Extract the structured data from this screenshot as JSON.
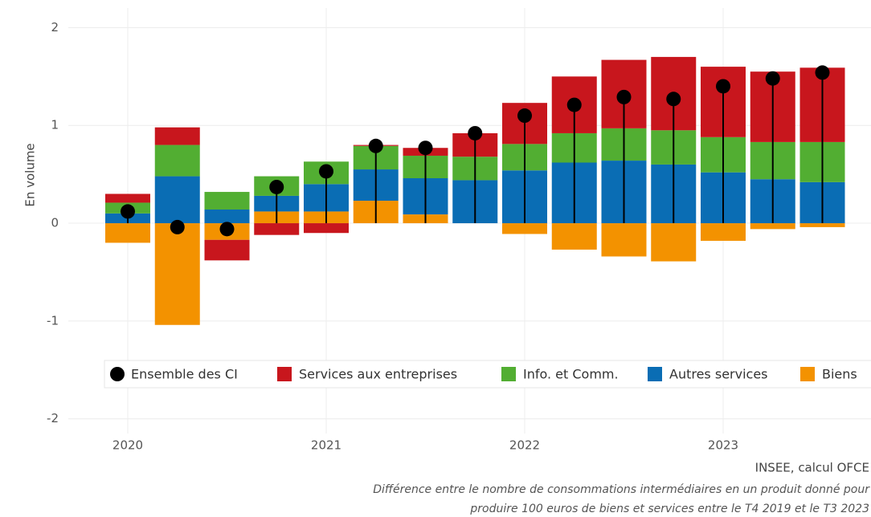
{
  "chart_data": {
    "type": "stacked_bar",
    "y_label": "En volume",
    "categories": [
      "2020",
      null,
      null,
      null,
      "2021",
      null,
      null,
      null,
      "2022",
      null,
      null,
      null,
      "2023",
      null,
      null
    ],
    "series": [
      {
        "name": "Ensemble des CI",
        "type": "dot",
        "color": "#000000",
        "values": [
          0.12,
          -0.04,
          -0.06,
          0.37,
          0.53,
          0.79,
          0.77,
          0.92,
          1.1,
          1.21,
          1.29,
          1.27,
          1.4,
          1.48,
          1.54
        ]
      },
      {
        "name": "Services aux entreprises",
        "type": "bar",
        "color": "#c8161d",
        "values": [
          0.09,
          0.18,
          -0.21,
          -0.12,
          -0.1,
          0.01,
          0.08,
          0.24,
          0.42,
          0.58,
          0.7,
          0.75,
          0.72,
          0.72,
          0.76
        ]
      },
      {
        "name": "Info. et Comm.",
        "type": "bar",
        "color": "#52ae32",
        "values": [
          0.11,
          0.32,
          0.18,
          0.2,
          0.23,
          0.24,
          0.23,
          0.24,
          0.27,
          0.3,
          0.33,
          0.35,
          0.36,
          0.38,
          0.41
        ]
      },
      {
        "name": "Autres services",
        "type": "bar",
        "color": "#0a6db4",
        "values": [
          0.1,
          0.48,
          0.14,
          0.16,
          0.28,
          0.32,
          0.37,
          0.44,
          0.54,
          0.62,
          0.64,
          0.6,
          0.52,
          0.45,
          0.42
        ]
      },
      {
        "name": "Biens",
        "type": "bar",
        "color": "#f39200",
        "values": [
          -0.2,
          -1.04,
          -0.17,
          0.12,
          0.12,
          0.23,
          0.09,
          0,
          -0.11,
          -0.27,
          -0.34,
          -0.39,
          -0.18,
          -0.06,
          -0.04
        ]
      }
    ],
    "ylim": [
      -2.15,
      2.2
    ],
    "yticks": [
      -2,
      -1,
      0,
      1,
      2
    ],
    "grid": true,
    "source": "INSEE, calcul OFCE",
    "note": [
      "Différence entre le nombre de consommations intermédiaires en un produit donné pour",
      "produire 100 euros de biens et services entre le T4 2019 et le T3 2023"
    ]
  }
}
